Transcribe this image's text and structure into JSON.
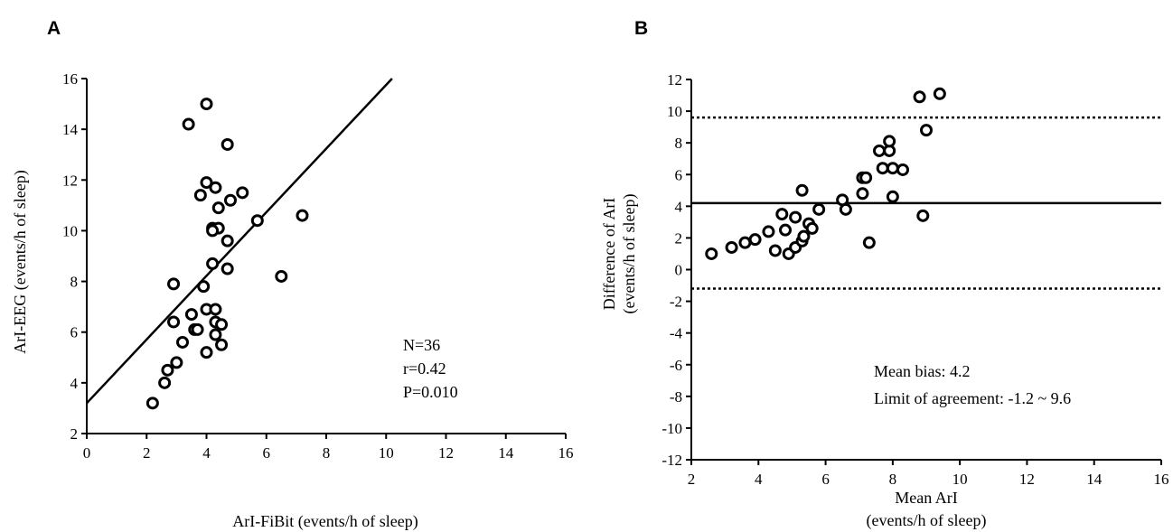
{
  "chart_data": [
    {
      "panel": "A",
      "type": "scatter",
      "xlabel": "ArI-FiBit (events/h of sleep)",
      "ylabel": "ArI-EEG (events/h of sleep)",
      "xlim": [
        0,
        16
      ],
      "ylim": [
        2,
        16
      ],
      "xticks": [
        0,
        2,
        4,
        6,
        8,
        10,
        12,
        14,
        16
      ],
      "yticks": [
        2,
        4,
        6,
        8,
        10,
        12,
        14,
        16
      ],
      "annotations": [
        "N=36",
        "r=0.42",
        "P=0.010"
      ],
      "regression_line": {
        "x1": 0,
        "y1": 3.2,
        "x2": 10.2,
        "y2": 16
      },
      "points": [
        {
          "x": 2.2,
          "y": 3.2
        },
        {
          "x": 2.6,
          "y": 4.0
        },
        {
          "x": 2.7,
          "y": 4.5
        },
        {
          "x": 3.0,
          "y": 4.8
        },
        {
          "x": 3.2,
          "y": 5.6
        },
        {
          "x": 2.9,
          "y": 6.4
        },
        {
          "x": 3.6,
          "y": 6.1
        },
        {
          "x": 3.5,
          "y": 6.7
        },
        {
          "x": 2.9,
          "y": 7.9
        },
        {
          "x": 3.4,
          "y": 14.2
        },
        {
          "x": 4.0,
          "y": 15.0
        },
        {
          "x": 3.9,
          "y": 7.8
        },
        {
          "x": 4.0,
          "y": 6.9
        },
        {
          "x": 4.3,
          "y": 6.9
        },
        {
          "x": 4.3,
          "y": 6.4
        },
        {
          "x": 4.5,
          "y": 6.3
        },
        {
          "x": 4.3,
          "y": 5.9
        },
        {
          "x": 4.5,
          "y": 5.5
        },
        {
          "x": 4.0,
          "y": 5.2
        },
        {
          "x": 4.2,
          "y": 8.7
        },
        {
          "x": 4.2,
          "y": 10.1
        },
        {
          "x": 4.4,
          "y": 10.1
        },
        {
          "x": 3.8,
          "y": 11.4
        },
        {
          "x": 4.0,
          "y": 11.9
        },
        {
          "x": 4.3,
          "y": 11.7
        },
        {
          "x": 4.4,
          "y": 10.9
        },
        {
          "x": 4.8,
          "y": 11.2
        },
        {
          "x": 5.2,
          "y": 11.5
        },
        {
          "x": 4.7,
          "y": 13.4
        },
        {
          "x": 4.7,
          "y": 9.6
        },
        {
          "x": 4.7,
          "y": 8.5
        },
        {
          "x": 5.7,
          "y": 10.4
        },
        {
          "x": 6.5,
          "y": 8.2
        },
        {
          "x": 7.2,
          "y": 10.6
        },
        {
          "x": 4.2,
          "y": 10.0
        },
        {
          "x": 3.7,
          "y": 6.1
        }
      ]
    },
    {
      "panel": "B",
      "type": "scatter",
      "xlabel": [
        "Mean ArI",
        "(events/h of sleep)"
      ],
      "ylabel": [
        "Difference of ArI",
        "(events/h of sleep)"
      ],
      "xlim": [
        2,
        16
      ],
      "ylim": [
        -12,
        12
      ],
      "xticks": [
        2,
        4,
        6,
        8,
        10,
        12,
        14,
        16
      ],
      "yticks": [
        -12,
        -10,
        -8,
        -6,
        -4,
        -2,
        0,
        2,
        4,
        6,
        8,
        10,
        12
      ],
      "mean_bias_line": 4.2,
      "limits_of_agreement": [
        -1.2,
        9.6
      ],
      "annotations": [
        "Mean bias: 4.2",
        "Limit of agreement: -1.2 ~ 9.6"
      ],
      "points": [
        {
          "x": 2.6,
          "y": 1.0
        },
        {
          "x": 3.2,
          "y": 1.4
        },
        {
          "x": 3.6,
          "y": 1.7
        },
        {
          "x": 3.9,
          "y": 1.9
        },
        {
          "x": 4.3,
          "y": 2.4
        },
        {
          "x": 4.5,
          "y": 1.2
        },
        {
          "x": 4.7,
          "y": 3.5
        },
        {
          "x": 4.8,
          "y": 2.5
        },
        {
          "x": 4.9,
          "y": 1.0
        },
        {
          "x": 5.1,
          "y": 3.3
        },
        {
          "x": 5.1,
          "y": 1.4
        },
        {
          "x": 5.3,
          "y": 1.8
        },
        {
          "x": 5.35,
          "y": 2.1
        },
        {
          "x": 5.3,
          "y": 5.0
        },
        {
          "x": 5.5,
          "y": 2.9
        },
        {
          "x": 5.6,
          "y": 2.6
        },
        {
          "x": 5.8,
          "y": 3.8
        },
        {
          "x": 6.5,
          "y": 4.4
        },
        {
          "x": 6.6,
          "y": 3.8
        },
        {
          "x": 7.1,
          "y": 5.8
        },
        {
          "x": 7.2,
          "y": 5.8
        },
        {
          "x": 7.1,
          "y": 4.8
        },
        {
          "x": 7.3,
          "y": 1.7
        },
        {
          "x": 7.6,
          "y": 7.5
        },
        {
          "x": 7.7,
          "y": 6.4
        },
        {
          "x": 7.9,
          "y": 7.5
        },
        {
          "x": 7.9,
          "y": 8.1
        },
        {
          "x": 8.0,
          "y": 6.4
        },
        {
          "x": 8.0,
          "y": 4.6
        },
        {
          "x": 8.3,
          "y": 6.3
        },
        {
          "x": 8.8,
          "y": 10.9
        },
        {
          "x": 9.4,
          "y": 11.1
        },
        {
          "x": 9.0,
          "y": 8.8
        },
        {
          "x": 8.9,
          "y": 3.4
        }
      ]
    }
  ],
  "panels": {
    "a": {
      "letter": "A"
    },
    "b": {
      "letter": "B"
    }
  }
}
